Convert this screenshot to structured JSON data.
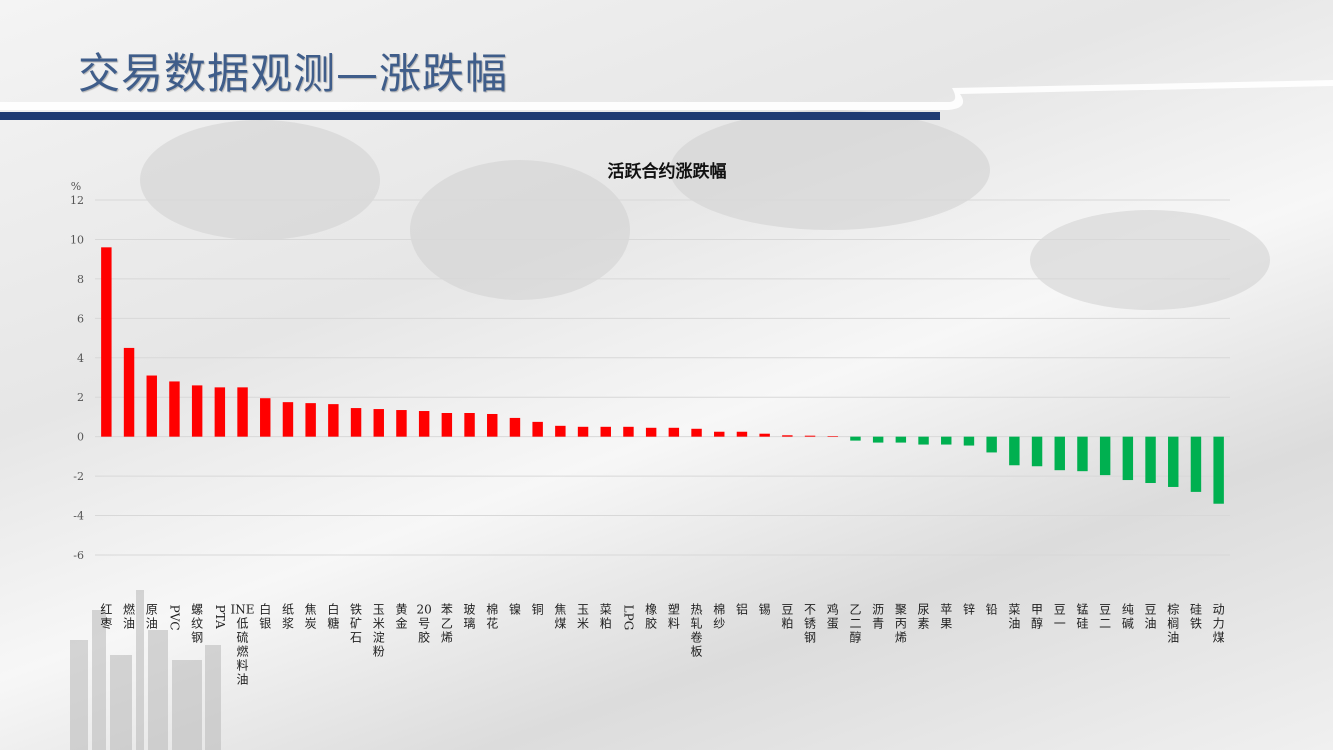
{
  "page": {
    "title": "交易数据观测—涨跌幅"
  },
  "colors": {
    "up": "#ff0000",
    "down": "#00b050",
    "title_blue": "#3f5d8a",
    "bar_navy": "#1f3b73"
  },
  "chart_data": {
    "type": "bar",
    "title": "活跃合约涨跌幅",
    "ylabel": "%",
    "ylim": [
      -6,
      12
    ],
    "yticks": [
      12,
      10,
      8,
      6,
      4,
      2,
      0,
      -2,
      -4,
      -6
    ],
    "grid": true,
    "legend": "none",
    "categories": [
      "红枣",
      "燃油",
      "原油",
      "PVC",
      "螺纹钢",
      "PTA",
      "INE低硫燃料油",
      "白银",
      "纸浆",
      "焦炭",
      "白糖",
      "铁矿石",
      "玉米淀粉",
      "黄金",
      "20号胶",
      "苯乙烯",
      "玻璃",
      "棉花",
      "镍",
      "铜",
      "焦煤",
      "玉米",
      "菜粕",
      "LPG",
      "橡胶",
      "塑料",
      "热轧卷板",
      "棉纱",
      "铝",
      "锡",
      "豆粕",
      "不锈钢",
      "鸡蛋",
      "乙二醇",
      "沥青",
      "聚丙烯",
      "尿素",
      "苹果",
      "锌",
      "铅",
      "菜油",
      "甲醇",
      "豆一",
      "锰硅",
      "豆二",
      "纯碱",
      "豆油",
      "棕榈油",
      "硅铁",
      "动力煤"
    ],
    "values": [
      9.6,
      4.5,
      3.1,
      2.8,
      2.6,
      2.5,
      2.5,
      1.95,
      1.75,
      1.7,
      1.65,
      1.45,
      1.4,
      1.35,
      1.3,
      1.2,
      1.2,
      1.15,
      0.95,
      0.75,
      0.55,
      0.5,
      0.5,
      0.5,
      0.45,
      0.45,
      0.4,
      0.25,
      0.25,
      0.15,
      0.07,
      0.05,
      0.03,
      -0.2,
      -0.3,
      -0.3,
      -0.4,
      -0.4,
      -0.45,
      -0.8,
      -1.45,
      -1.5,
      -1.7,
      -1.75,
      -1.95,
      -2.2,
      -2.35,
      -2.55,
      -2.8,
      -3.4
    ]
  }
}
